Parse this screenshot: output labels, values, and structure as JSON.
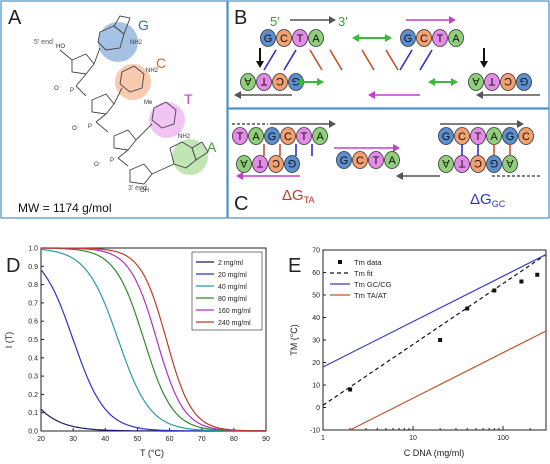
{
  "panelA": {
    "label": "A",
    "five_end": "5' end",
    "three_end": "3' end",
    "mw": "MW = 1174 g/mol",
    "bases": [
      "G",
      "C",
      "T",
      "A"
    ],
    "atoms": {
      "nh2": "NH2",
      "me": "Me",
      "ho": "HO",
      "oh": "OH",
      "o": "O",
      "n": "N",
      "o_minus": "O⁻",
      "p": "P"
    },
    "colors": {
      "G": "#5b8fd0",
      "C": "#f3a070",
      "T": "#e58ae8",
      "A": "#8fcf7a"
    }
  },
  "panelB": {
    "label": "B",
    "five_prime": "5′",
    "three_prime": "3′",
    "top_left": [
      "G",
      "C",
      "T",
      "A"
    ],
    "top_right": [
      "G",
      "C",
      "T",
      "A"
    ],
    "bottom_left": [
      "A",
      "T",
      "C",
      "G"
    ],
    "bottom_right": [
      "A",
      "T",
      "C",
      "G"
    ]
  },
  "panelC": {
    "label": "C",
    "dg_ta": "ΔG",
    "dg_ta_sub": "TA",
    "dg_gc": "ΔG",
    "dg_gc_sub": "GC",
    "row1_left": [
      "T",
      "A",
      "G",
      "C",
      "T",
      "A"
    ],
    "row1_right": [
      "G",
      "C",
      "T",
      "A",
      "G",
      "C"
    ],
    "row_mid": [
      "G",
      "C",
      "T",
      "A"
    ],
    "row2_left": [
      "A",
      "T",
      "C",
      "G"
    ],
    "row2_right": [
      "A",
      "T",
      "C",
      "G",
      "A"
    ]
  },
  "panelD": {
    "label": "D",
    "chart_data": {
      "type": "line",
      "xlabel": "T (°C)",
      "ylabel": "I (T)",
      "xlim": [
        20,
        90
      ],
      "ylim": [
        0,
        1.0
      ],
      "xticks": [
        20,
        30,
        40,
        50,
        60,
        70,
        80,
        90
      ],
      "yticks": [
        0.0,
        0.1,
        0.2,
        0.3,
        0.4,
        0.5,
        0.6,
        0.7,
        0.8,
        0.9,
        1.0
      ],
      "legend_position": "top-right",
      "series": [
        {
          "name": "2 mg/ml",
          "color": "#1a1a6e",
          "tm": 8,
          "width": 6
        },
        {
          "name": "20 mg/ml",
          "color": "#3030c8",
          "tm": 30,
          "width": 5
        },
        {
          "name": "40 mg/ml",
          "color": "#2a9aa8",
          "tm": 44,
          "width": 5
        },
        {
          "name": "80 mg/ml",
          "color": "#2e8b2e",
          "tm": 52,
          "width": 4.5
        },
        {
          "name": "160 mg/ml",
          "color": "#b030c8",
          "tm": 56,
          "width": 4.2
        },
        {
          "name": "240 mg/ml",
          "color": "#c0392b",
          "tm": 59,
          "width": 4
        }
      ]
    }
  },
  "panelE": {
    "label": "E",
    "chart_data": {
      "type": "scatter",
      "xlabel": "C DNA (mg/ml)",
      "ylabel": "TM (°C)",
      "xscale": "log",
      "xlim": [
        1,
        300
      ],
      "ylim": [
        -10,
        70
      ],
      "xticks": [
        1,
        10,
        100
      ],
      "yticks": [
        -10,
        0,
        10,
        20,
        30,
        40,
        50,
        60,
        70
      ],
      "legend_position": "top-left",
      "series": [
        {
          "name": "Tm data",
          "kind": "points",
          "color": "#111111",
          "x": [
            2,
            20,
            40,
            80,
            160,
            240
          ],
          "y": [
            8,
            30,
            44,
            52,
            56,
            59
          ]
        },
        {
          "name": "Tm fit",
          "kind": "dashed",
          "color": "#111111",
          "x": [
            1,
            300
          ],
          "y": [
            1,
            68
          ]
        },
        {
          "name": "Tm GC/CG",
          "kind": "line",
          "color": "#3a3ac8",
          "x": [
            1,
            300
          ],
          "y": [
            18,
            68
          ]
        },
        {
          "name": "Tm TA/AT",
          "kind": "line",
          "color": "#c0532b",
          "x": [
            2,
            300
          ],
          "y": [
            -10,
            34
          ]
        }
      ]
    }
  }
}
